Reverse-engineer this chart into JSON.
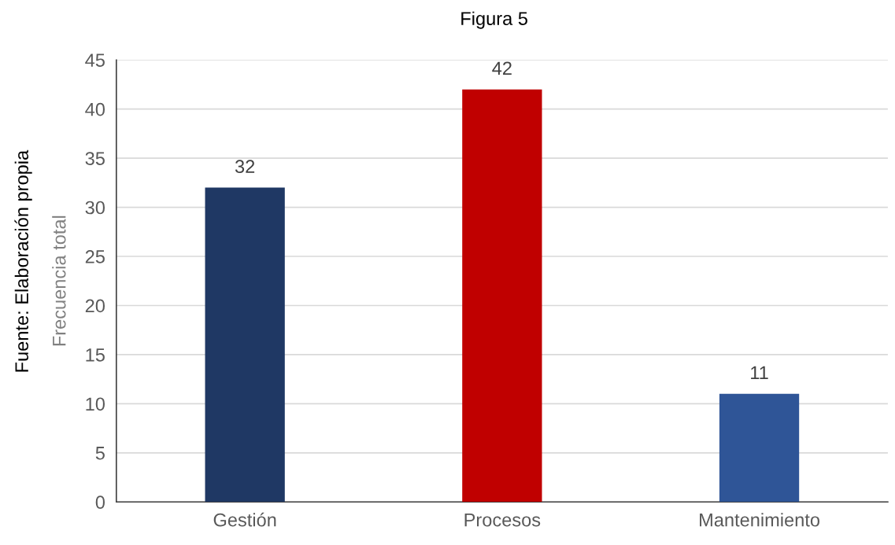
{
  "chart_data": {
    "type": "bar",
    "title": "Figura 5",
    "ylabel": "Frecuencia total",
    "categories": [
      "Gestión",
      "Procesos",
      "Mantenimiento"
    ],
    "values": [
      32,
      42,
      11
    ],
    "colors": [
      "#1f3864",
      "#c00000",
      "#2f5597"
    ],
    "ylim": [
      0,
      45
    ],
    "yticks": [
      0,
      5,
      10,
      15,
      20,
      25,
      30,
      35,
      40,
      45
    ],
    "grid": "y",
    "data_labels": true,
    "annotations": [
      "Fuente: Elaboración propia"
    ]
  }
}
